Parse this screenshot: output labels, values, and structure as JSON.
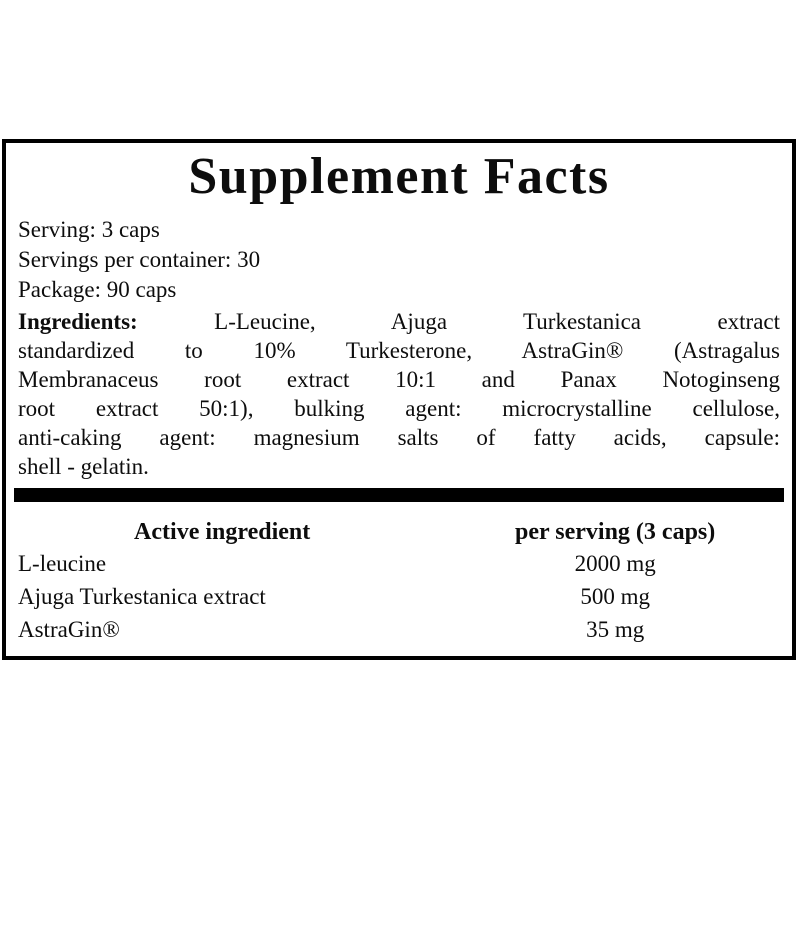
{
  "page": {
    "background_color": "#ffffff",
    "text_color": "#0d0d0d",
    "border_color": "#000000"
  },
  "label": {
    "title": "Supplement Facts",
    "info_lines": [
      "Serving: 3 caps",
      "Servings per container: 30",
      "Package: 90 caps"
    ],
    "ingredients": {
      "label": "Ingredients:",
      "lines": [
        "L-Leucine, Ajuga Turkestanica extract",
        "standardized to 10% Turkesterone, AstraGin® (Astragalus",
        "Membranaceus root extract 10:1 and Panax Notoginseng",
        "root extract 50:1), bulking agent: microcrystalline cellulose,",
        "anti-caking agent: magnesium salts of fatty acids, capsule:",
        "shell - gelatin."
      ]
    },
    "table": {
      "headers": {
        "ingredient": "Active ingredient",
        "per_serving": "per serving (3 caps)"
      },
      "rows": [
        {
          "ingredient": "L-leucine",
          "amount": "2000 mg"
        },
        {
          "ingredient": "Ajuga Turkestanica extract",
          "amount": "500 mg"
        },
        {
          "ingredient": "AstraGin®",
          "amount": "35 mg"
        }
      ]
    }
  }
}
